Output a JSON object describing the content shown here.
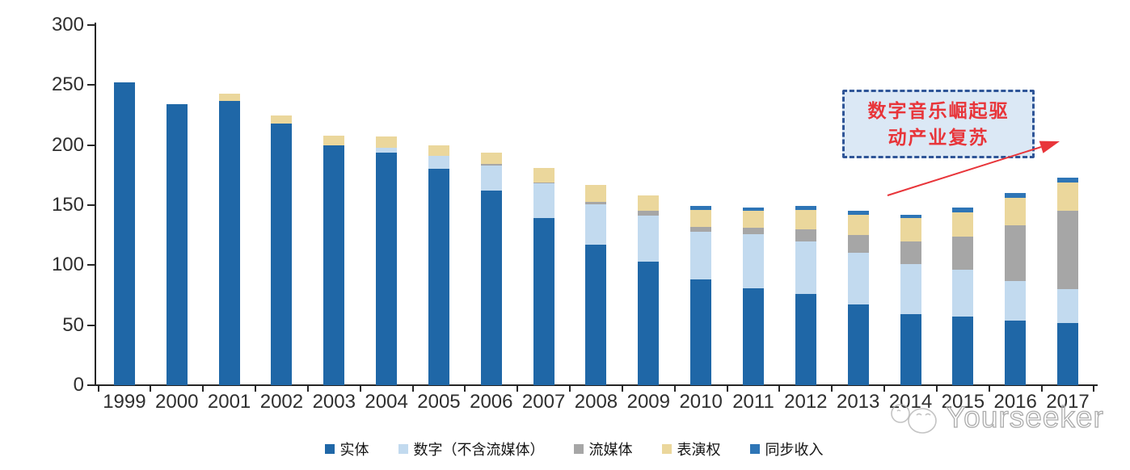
{
  "chart_data": {
    "type": "bar",
    "stacked": true,
    "title": "",
    "xlabel": "",
    "ylabel": "",
    "categories": [
      "1999",
      "2000",
      "2001",
      "2002",
      "2003",
      "2004",
      "2005",
      "2006",
      "2007",
      "2008",
      "2009",
      "2010",
      "2011",
      "2012",
      "2013",
      "2014",
      "2015",
      "2016",
      "2017"
    ],
    "series": [
      {
        "key": "physical",
        "name": "实体",
        "color": "#1F67A7",
        "values": [
          252,
          234,
          237,
          218,
          200,
          194,
          180,
          162,
          139,
          117,
          103,
          88,
          81,
          76,
          67,
          59,
          57,
          54,
          52
        ]
      },
      {
        "key": "digital-excl-streaming",
        "name": "数字（不含流媒体）",
        "color": "#C2DAEF",
        "values": [
          0,
          0,
          0,
          0,
          0,
          4,
          11,
          21,
          29,
          34,
          38,
          40,
          45,
          44,
          43,
          42,
          39,
          33,
          28
        ]
      },
      {
        "key": "streaming",
        "name": "流媒体",
        "color": "#A6A6A6",
        "values": [
          0,
          0,
          0,
          0,
          0,
          0,
          0,
          1,
          1,
          2,
          4,
          4,
          5,
          10,
          15,
          19,
          28,
          46,
          65
        ]
      },
      {
        "key": "performance-rights",
        "name": "表演权",
        "color": "#EBD79C",
        "values": [
          0,
          0,
          6,
          7,
          8,
          9,
          9,
          10,
          12,
          14,
          13,
          14,
          14,
          16,
          17,
          19,
          20,
          23,
          24
        ]
      },
      {
        "key": "sync-revenue",
        "name": "同步收入",
        "color": "#2E75B6",
        "values": [
          0,
          0,
          0,
          0,
          0,
          0,
          0,
          0,
          0,
          0,
          0,
          3,
          3,
          3,
          3,
          3,
          4,
          4,
          4
        ]
      }
    ],
    "ylim": [
      0,
      300
    ],
    "yticks": [
      0,
      50,
      100,
      150,
      200,
      250,
      300
    ],
    "grid": false,
    "legend_position": "bottom"
  },
  "annotation": {
    "line1": "数字音乐崛起驱",
    "line2": "动产业复苏"
  },
  "watermark": {
    "text": "Yourseeker"
  },
  "colors": {
    "annotation_text": "#E8353A",
    "annotation_border": "#2F5597",
    "annotation_fill": "#DBE8F5",
    "arrow": "#E8353A",
    "axis": "#262626",
    "physical": "#1F67A7",
    "digital_excl_streaming": "#C2DAEF",
    "streaming": "#A6A6A6",
    "performance_rights": "#EBD79C",
    "sync_revenue": "#2E75B6"
  }
}
